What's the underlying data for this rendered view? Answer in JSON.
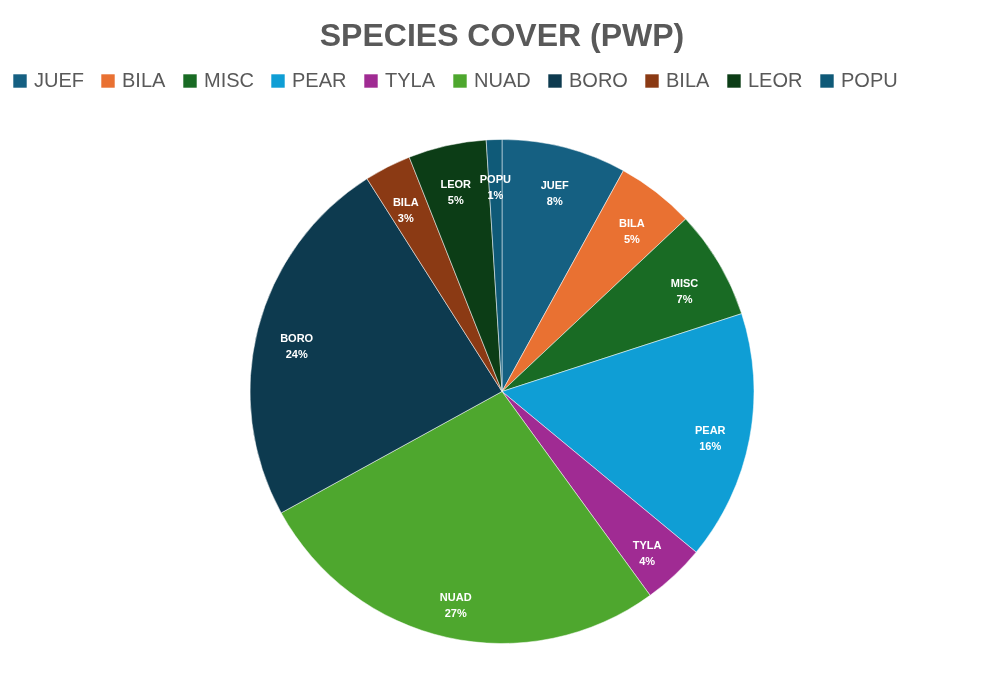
{
  "chart_data": {
    "type": "pie",
    "title": "SPECIES COVER (PWP)",
    "categories": [
      "JUEF",
      "BILA",
      "MISC",
      "PEAR",
      "TYLA",
      "NUAD",
      "BORO",
      "BILA",
      "LEOR",
      "POPU"
    ],
    "values": [
      8,
      5,
      7,
      16,
      4,
      27,
      24,
      3,
      5,
      1
    ],
    "colors": [
      "#156082",
      "#e97132",
      "#196b24",
      "#0f9ed5",
      "#a02b93",
      "#4ea72e",
      "#0d3a4f",
      "#8b3a14",
      "#0c3d16",
      "#0f5a78"
    ],
    "value_labels": [
      "8%",
      "5%",
      "7%",
      "16%",
      "4%",
      "27%",
      "24%",
      "3%",
      "5%",
      "1%"
    ],
    "legend": "top"
  }
}
